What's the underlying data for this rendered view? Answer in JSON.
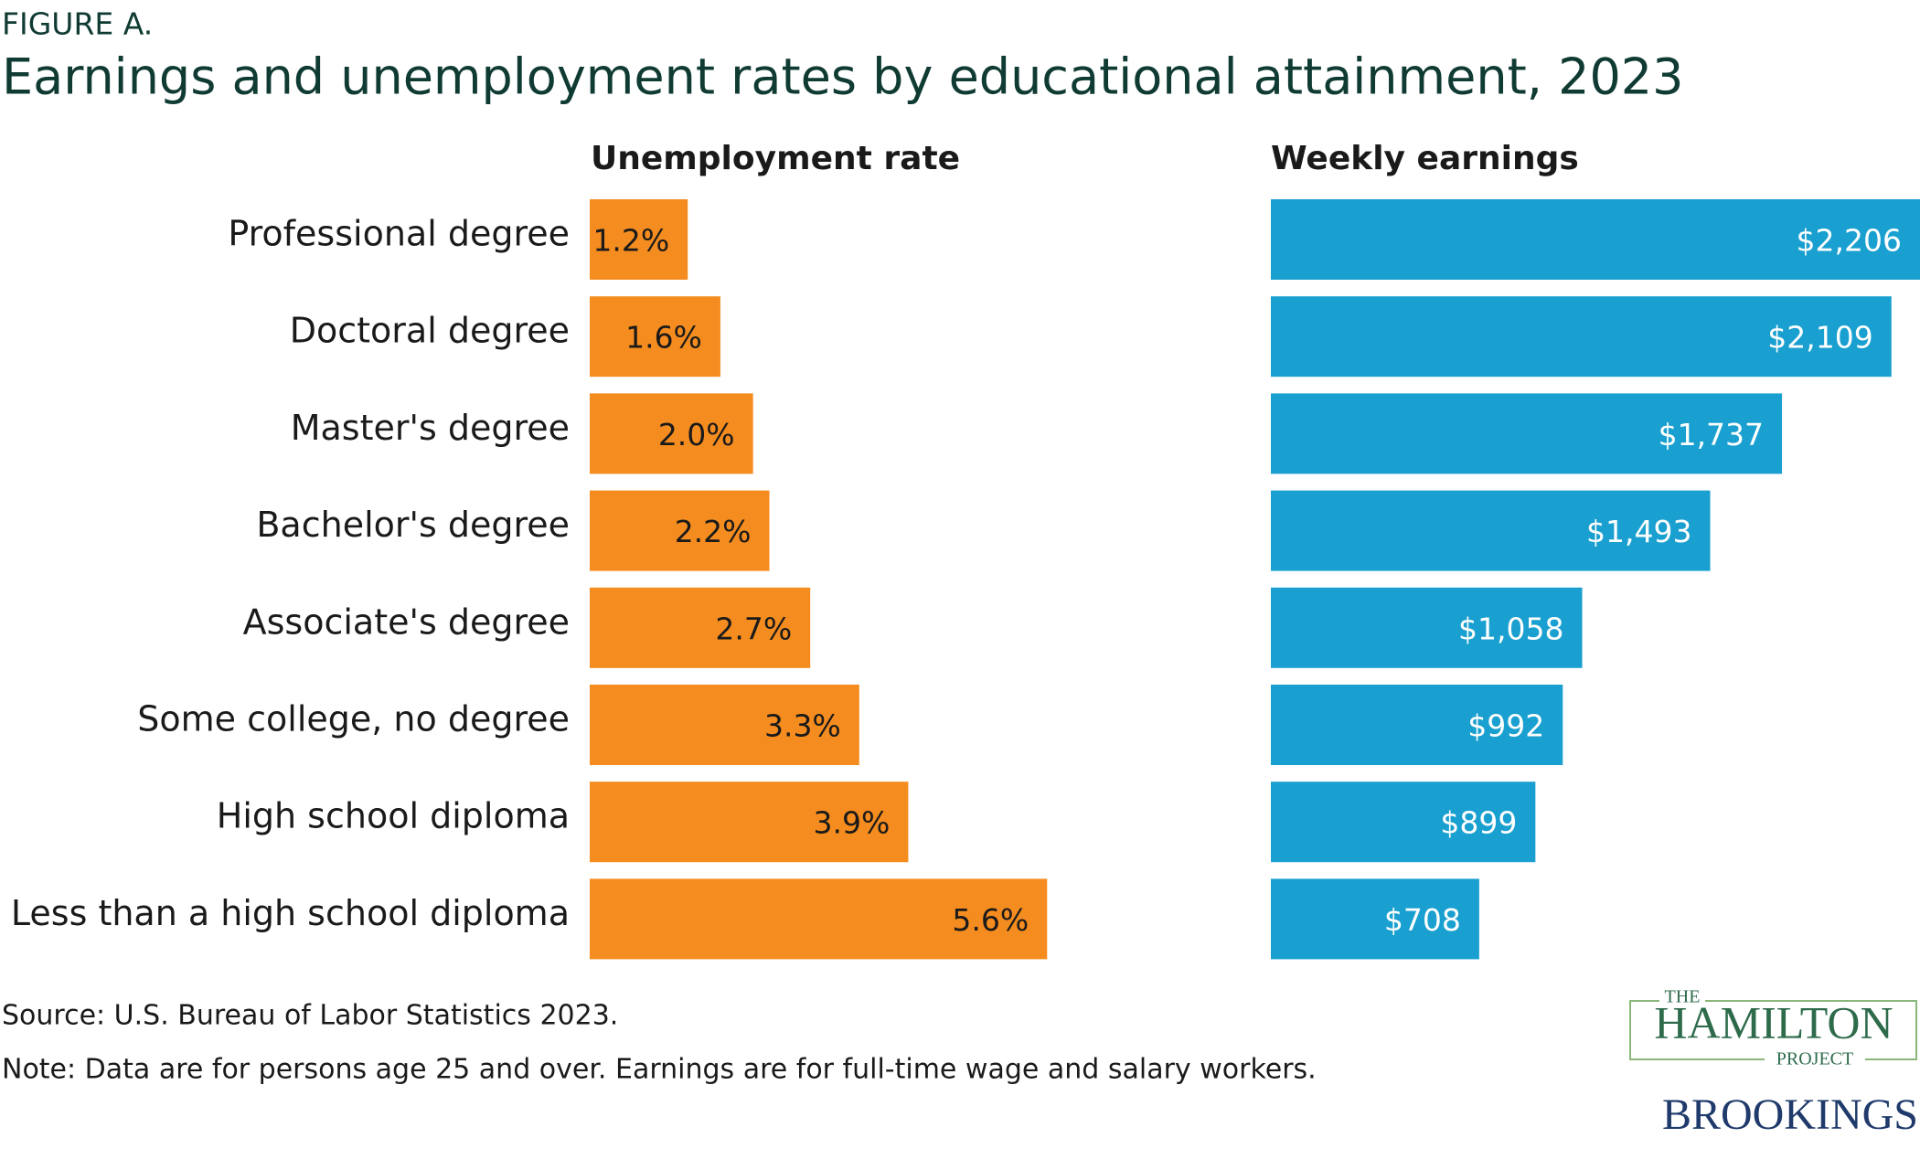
{
  "figure_label": "FIGURE A.",
  "title": "Earnings and unemployment rates by educational attainment, 2023",
  "chart_data": [
    {
      "type": "bar",
      "orientation": "horizontal",
      "title": "Unemployment rate",
      "categories": [
        "Professional degree",
        "Doctoral degree",
        "Master's degree",
        "Bachelor's degree",
        "Associate's degree",
        "Some college, no degree",
        "High school diploma",
        "Less than a high school diploma"
      ],
      "values": [
        1.2,
        1.6,
        2.0,
        2.2,
        2.7,
        3.3,
        3.9,
        5.6
      ],
      "value_labels": [
        "1.2%",
        "1.6%",
        "2.0%",
        "2.2%",
        "2.7%",
        "3.3%",
        "3.9%",
        "5.6%"
      ],
      "color": "#f58c1f",
      "label_color": "#1a1a1a",
      "xlim": [
        0,
        6
      ]
    },
    {
      "type": "bar",
      "orientation": "horizontal",
      "title": "Weekly earnings",
      "values": [
        2206,
        2109,
        1737,
        1493,
        1058,
        992,
        899,
        708
      ],
      "value_labels": [
        "$2,206",
        "$2,109",
        "$1,737",
        "$1,493",
        "$1,058",
        "$992",
        "$899",
        "$708"
      ],
      "color": "#1aa0d0",
      "label_color": "#ffffff",
      "xlim": [
        0,
        2206
      ]
    }
  ],
  "source": "Source: U.S. Bureau of Labor Statistics 2023.",
  "note": "Note: Data are for persons age 25 and over. Earnings are for full-time wage and salary workers.",
  "logo": {
    "top": "THE",
    "name": "HAMILTON",
    "bottom": "PROJECT",
    "org": "BROOKINGS"
  }
}
